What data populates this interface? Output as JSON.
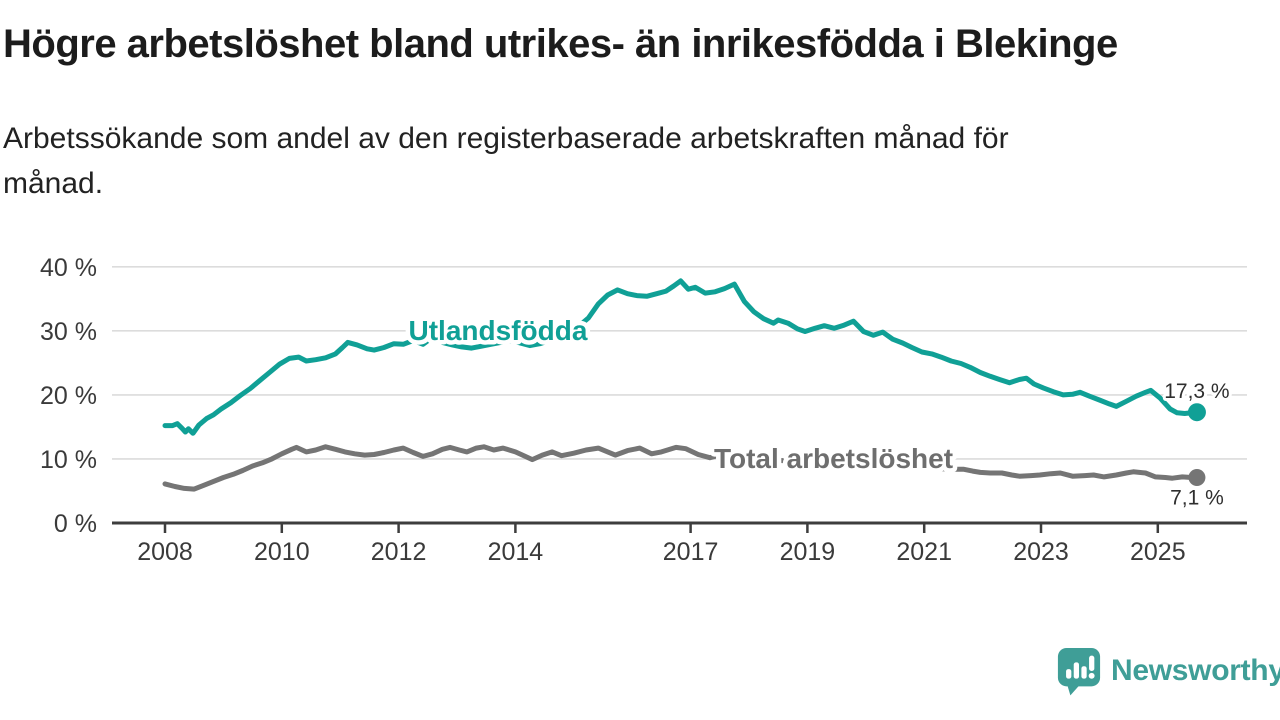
{
  "chart_data": {
    "type": "line",
    "title": "Högre arbetslöshet bland utrikes- än inrikesfödda i Blekinge",
    "subtitle_line1": "Arbetssökande som andel av den registerbaserade arbetskraften månad för",
    "subtitle_line2": "månad.",
    "xlabel": "",
    "ylabel": "",
    "ylim": [
      0,
      43
    ],
    "xlim": [
      2007.9,
      2026.5
    ],
    "grid": "horizontal",
    "legend": "inline-labels",
    "grid_color": "#dcdcdc",
    "axis_color": "#3d3d3d",
    "tick_text_color": "#3a3a3a",
    "value_label_color": "#2e2e2e",
    "y_ticks": [
      {
        "value": 0,
        "label": "0 %"
      },
      {
        "value": 10,
        "label": "10 %"
      },
      {
        "value": 20,
        "label": "20 %"
      },
      {
        "value": 30,
        "label": "30 %"
      },
      {
        "value": 40,
        "label": "40 %"
      }
    ],
    "x_ticks": [
      {
        "value": 2008,
        "label": "2008"
      },
      {
        "value": 2010,
        "label": "2010"
      },
      {
        "value": 2012,
        "label": "2012"
      },
      {
        "value": 2014,
        "label": "2014"
      },
      {
        "value": 2017,
        "label": "2017"
      },
      {
        "value": 2019,
        "label": "2019"
      },
      {
        "value": 2021,
        "label": "2021"
      },
      {
        "value": 2023,
        "label": "2023"
      },
      {
        "value": 2025,
        "label": "2025"
      }
    ],
    "series": [
      {
        "id": "utlandsfodda",
        "name": "Utlandsfödda",
        "color": "#10a096",
        "label_color": "#10a096",
        "label_at": [
          2012.17,
          28.6
        ],
        "end_label": "17,3 %",
        "end_label_position": "above",
        "dot_radius": 9,
        "points": [
          [
            2008.0,
            15.2
          ],
          [
            2008.13,
            15.2
          ],
          [
            2008.21,
            15.5
          ],
          [
            2008.29,
            14.8
          ],
          [
            2008.35,
            14.2
          ],
          [
            2008.4,
            14.7
          ],
          [
            2008.48,
            14.0
          ],
          [
            2008.58,
            15.3
          ],
          [
            2008.71,
            16.3
          ],
          [
            2008.83,
            16.9
          ],
          [
            2008.96,
            17.8
          ],
          [
            2009.13,
            18.8
          ],
          [
            2009.29,
            19.9
          ],
          [
            2009.46,
            21.0
          ],
          [
            2009.63,
            22.3
          ],
          [
            2009.79,
            23.5
          ],
          [
            2009.96,
            24.8
          ],
          [
            2010.13,
            25.7
          ],
          [
            2010.29,
            25.9
          ],
          [
            2010.42,
            25.3
          ],
          [
            2010.58,
            25.5
          ],
          [
            2010.75,
            25.8
          ],
          [
            2010.92,
            26.4
          ],
          [
            2011.04,
            27.4
          ],
          [
            2011.13,
            28.2
          ],
          [
            2011.29,
            27.8
          ],
          [
            2011.46,
            27.2
          ],
          [
            2011.58,
            27.0
          ],
          [
            2011.75,
            27.4
          ],
          [
            2011.92,
            28.0
          ],
          [
            2012.08,
            27.9
          ],
          [
            2012.25,
            28.5
          ],
          [
            2012.42,
            27.9
          ],
          [
            2012.58,
            29.0
          ],
          [
            2012.75,
            28.2
          ],
          [
            2012.92,
            27.8
          ],
          [
            2013.08,
            27.5
          ],
          [
            2013.25,
            27.3
          ],
          [
            2013.42,
            27.6
          ],
          [
            2013.58,
            27.9
          ],
          [
            2013.75,
            28.2
          ],
          [
            2013.92,
            28.5
          ],
          [
            2014.08,
            28.1
          ],
          [
            2014.25,
            27.7
          ],
          [
            2014.42,
            28.0
          ],
          [
            2014.58,
            28.5
          ],
          [
            2014.75,
            29.1
          ],
          [
            2014.92,
            29.8
          ],
          [
            2015.08,
            30.7
          ],
          [
            2015.25,
            32.0
          ],
          [
            2015.42,
            34.2
          ],
          [
            2015.58,
            35.6
          ],
          [
            2015.75,
            36.4
          ],
          [
            2015.92,
            35.8
          ],
          [
            2016.08,
            35.5
          ],
          [
            2016.25,
            35.4
          ],
          [
            2016.42,
            35.8
          ],
          [
            2016.58,
            36.2
          ],
          [
            2016.71,
            37.0
          ],
          [
            2016.83,
            37.8
          ],
          [
            2016.96,
            36.5
          ],
          [
            2017.08,
            36.8
          ],
          [
            2017.25,
            35.9
          ],
          [
            2017.42,
            36.1
          ],
          [
            2017.58,
            36.6
          ],
          [
            2017.75,
            37.3
          ],
          [
            2017.92,
            34.6
          ],
          [
            2018.08,
            33.0
          ],
          [
            2018.25,
            31.9
          ],
          [
            2018.42,
            31.2
          ],
          [
            2018.5,
            31.7
          ],
          [
            2018.67,
            31.2
          ],
          [
            2018.83,
            30.3
          ],
          [
            2018.96,
            29.9
          ],
          [
            2019.13,
            30.4
          ],
          [
            2019.29,
            30.8
          ],
          [
            2019.46,
            30.4
          ],
          [
            2019.63,
            30.9
          ],
          [
            2019.79,
            31.5
          ],
          [
            2019.96,
            29.9
          ],
          [
            2020.13,
            29.3
          ],
          [
            2020.29,
            29.8
          ],
          [
            2020.46,
            28.7
          ],
          [
            2020.63,
            28.1
          ],
          [
            2020.79,
            27.4
          ],
          [
            2020.96,
            26.7
          ],
          [
            2021.13,
            26.4
          ],
          [
            2021.29,
            25.9
          ],
          [
            2021.46,
            25.3
          ],
          [
            2021.63,
            24.9
          ],
          [
            2021.79,
            24.3
          ],
          [
            2021.96,
            23.5
          ],
          [
            2022.13,
            22.9
          ],
          [
            2022.29,
            22.4
          ],
          [
            2022.46,
            21.9
          ],
          [
            2022.63,
            22.4
          ],
          [
            2022.75,
            22.6
          ],
          [
            2022.88,
            21.7
          ],
          [
            2023.04,
            21.1
          ],
          [
            2023.21,
            20.5
          ],
          [
            2023.38,
            20.0
          ],
          [
            2023.54,
            20.1
          ],
          [
            2023.67,
            20.4
          ],
          [
            2023.83,
            19.8
          ],
          [
            2024.0,
            19.2
          ],
          [
            2024.17,
            18.6
          ],
          [
            2024.29,
            18.2
          ],
          [
            2024.46,
            19.0
          ],
          [
            2024.63,
            19.8
          ],
          [
            2024.79,
            20.4
          ],
          [
            2024.88,
            20.7
          ],
          [
            2025.04,
            19.5
          ],
          [
            2025.21,
            17.8
          ],
          [
            2025.33,
            17.2
          ],
          [
            2025.46,
            17.1
          ],
          [
            2025.58,
            17.2
          ],
          [
            2025.67,
            17.3
          ]
        ]
      },
      {
        "id": "total-arbetsloshet",
        "name": "Total arbetslöshet",
        "color": "#757575",
        "label_color": "#6e6e6e",
        "label_at": [
          2017.4,
          8.6
        ],
        "end_label": "7,1 %",
        "end_label_position": "below",
        "dot_radius": 8.5,
        "points": [
          [
            2008.0,
            6.1
          ],
          [
            2008.17,
            5.7
          ],
          [
            2008.33,
            5.4
          ],
          [
            2008.5,
            5.3
          ],
          [
            2008.67,
            5.9
          ],
          [
            2008.83,
            6.5
          ],
          [
            2009.0,
            7.1
          ],
          [
            2009.17,
            7.6
          ],
          [
            2009.33,
            8.2
          ],
          [
            2009.5,
            8.9
          ],
          [
            2009.67,
            9.4
          ],
          [
            2009.83,
            10.0
          ],
          [
            2010.0,
            10.8
          ],
          [
            2010.17,
            11.5
          ],
          [
            2010.25,
            11.8
          ],
          [
            2010.42,
            11.1
          ],
          [
            2010.58,
            11.4
          ],
          [
            2010.75,
            11.9
          ],
          [
            2010.92,
            11.5
          ],
          [
            2011.08,
            11.1
          ],
          [
            2011.25,
            10.8
          ],
          [
            2011.42,
            10.6
          ],
          [
            2011.58,
            10.7
          ],
          [
            2011.75,
            11.0
          ],
          [
            2011.92,
            11.4
          ],
          [
            2012.08,
            11.7
          ],
          [
            2012.25,
            11.0
          ],
          [
            2012.42,
            10.4
          ],
          [
            2012.58,
            10.8
          ],
          [
            2012.75,
            11.5
          ],
          [
            2012.88,
            11.8
          ],
          [
            2013.04,
            11.4
          ],
          [
            2013.17,
            11.1
          ],
          [
            2013.33,
            11.7
          ],
          [
            2013.46,
            11.9
          ],
          [
            2013.63,
            11.4
          ],
          [
            2013.79,
            11.7
          ],
          [
            2014.0,
            11.1
          ],
          [
            2014.17,
            10.4
          ],
          [
            2014.29,
            9.9
          ],
          [
            2014.46,
            10.6
          ],
          [
            2014.63,
            11.1
          ],
          [
            2014.79,
            10.5
          ],
          [
            2015.0,
            10.9
          ],
          [
            2015.21,
            11.4
          ],
          [
            2015.42,
            11.7
          ],
          [
            2015.58,
            11.1
          ],
          [
            2015.71,
            10.6
          ],
          [
            2015.92,
            11.3
          ],
          [
            2016.13,
            11.7
          ],
          [
            2016.33,
            10.8
          ],
          [
            2016.5,
            11.1
          ],
          [
            2016.75,
            11.8
          ],
          [
            2016.92,
            11.6
          ],
          [
            2017.13,
            10.7
          ],
          [
            2017.33,
            10.2
          ],
          [
            2017.5,
            10.6
          ],
          [
            2017.67,
            10.4
          ],
          [
            2017.83,
            10.2
          ],
          [
            2018.0,
            10.3
          ],
          [
            2018.25,
            10.1
          ],
          [
            2018.5,
            9.8
          ],
          [
            2018.75,
            9.6
          ],
          [
            2019.0,
            9.5
          ],
          [
            2019.25,
            9.3
          ],
          [
            2019.5,
            9.2
          ],
          [
            2019.75,
            9.1
          ],
          [
            2020.0,
            9.0
          ],
          [
            2020.25,
            9.4
          ],
          [
            2020.5,
            9.2
          ],
          [
            2020.75,
            8.9
          ],
          [
            2021.0,
            8.7
          ],
          [
            2021.25,
            8.5
          ],
          [
            2021.5,
            8.4
          ],
          [
            2021.67,
            8.4
          ],
          [
            2021.83,
            8.1
          ],
          [
            2021.96,
            7.9
          ],
          [
            2022.13,
            7.8
          ],
          [
            2022.33,
            7.8
          ],
          [
            2022.5,
            7.5
          ],
          [
            2022.63,
            7.3
          ],
          [
            2022.83,
            7.4
          ],
          [
            2022.98,
            7.5
          ],
          [
            2023.17,
            7.7
          ],
          [
            2023.33,
            7.8
          ],
          [
            2023.54,
            7.3
          ],
          [
            2023.75,
            7.4
          ],
          [
            2023.9,
            7.5
          ],
          [
            2024.08,
            7.2
          ],
          [
            2024.29,
            7.5
          ],
          [
            2024.46,
            7.8
          ],
          [
            2024.58,
            8.0
          ],
          [
            2024.79,
            7.8
          ],
          [
            2024.96,
            7.2
          ],
          [
            2025.13,
            7.1
          ],
          [
            2025.25,
            7.0
          ],
          [
            2025.42,
            7.2
          ],
          [
            2025.58,
            7.1
          ],
          [
            2025.67,
            7.1
          ]
        ]
      }
    ]
  },
  "branding": {
    "name": "Newsworthy",
    "color": "#3f9e97"
  }
}
